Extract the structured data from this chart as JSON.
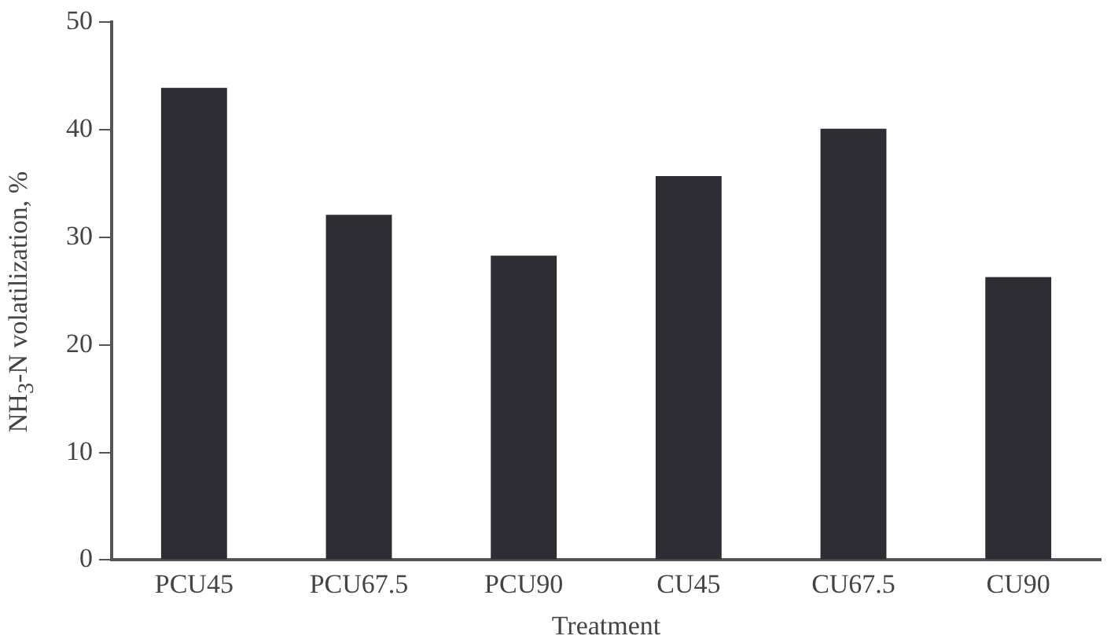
{
  "chart_data": {
    "type": "bar",
    "xlabel": "Treatment",
    "ylabel": "NH$_{3}$-N volatilization, %",
    "categories": [
      "PCU45",
      "PCU67.5",
      "PCU90",
      "CU45",
      "CU67.5",
      "CU90"
    ],
    "values": [
      43.9,
      32.1,
      28.3,
      35.7,
      40.1,
      26.3
    ],
    "color": "#2d2d33",
    "ylim": [
      0,
      50
    ],
    "yticks": [
      0,
      10,
      20,
      30,
      40,
      50
    ],
    "grid": false,
    "legend": false
  }
}
